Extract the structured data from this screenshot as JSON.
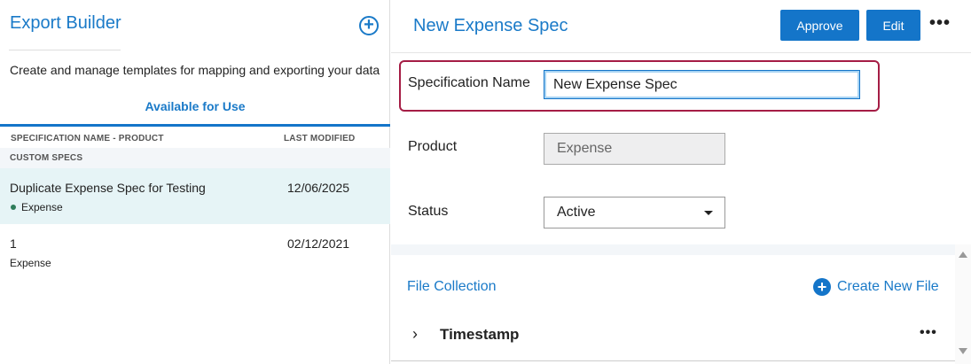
{
  "left": {
    "title": "Export Builder",
    "description": "Create and manage templates for mapping and exporting your data",
    "tab": "Available for Use",
    "columns": [
      "SPECIFICATION NAME - PRODUCT",
      "LAST MODIFIED"
    ],
    "group": "CUSTOM SPECS",
    "rows": [
      {
        "name": "Duplicate Expense Spec for Testing",
        "product": "Expense",
        "modified": "12/06/2025",
        "selected": true,
        "status_dot": "#2e7d5b"
      },
      {
        "name": "1",
        "product": "Expense",
        "modified": "02/12/2021",
        "selected": false
      }
    ]
  },
  "right": {
    "title": "New Expense Spec",
    "approve": "Approve",
    "edit": "Edit",
    "more": "•••",
    "spec_name_label": "Specification Name",
    "spec_name_value": "New Expense Spec",
    "product_label": "Product",
    "product_value": "Expense",
    "status_label": "Status",
    "status_value": "Active",
    "file_collection": "File Collection",
    "create_new_file": "Create New File",
    "file_item": "Timestamp",
    "file_more": "•••"
  },
  "colors": {
    "accent": "#1475c9",
    "highlight": "#a51d45",
    "selected_row": "#e6f4f6"
  }
}
